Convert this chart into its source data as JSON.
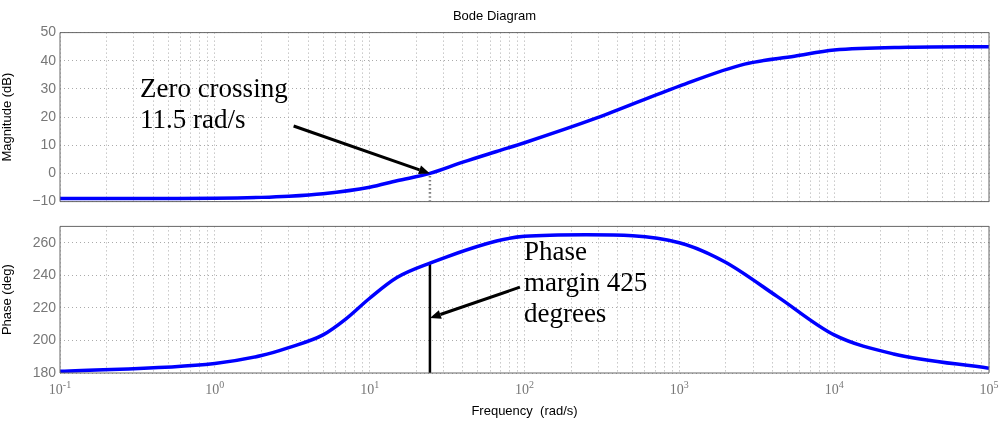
{
  "chart_data": [
    {
      "type": "line",
      "title": "Bode Diagram",
      "ylabel": "Magnitude (dB)",
      "log": "x",
      "grid": true,
      "legend": false,
      "tick_labels": "y",
      "xlim": [
        0.1,
        100000
      ],
      "ylim": [
        -10,
        50
      ],
      "xticks": [
        0.1,
        0.2,
        0.3,
        0.4,
        0.5,
        0.6,
        0.7,
        0.8,
        0.9,
        1,
        2,
        3,
        4,
        5,
        6,
        7,
        8,
        9,
        10,
        20,
        30,
        40,
        50,
        60,
        70,
        80,
        90,
        100,
        200,
        300,
        400,
        500,
        600,
        700,
        800,
        900,
        1000,
        2000,
        3000,
        4000,
        5000,
        6000,
        7000,
        8000,
        9000,
        10000,
        20000,
        30000,
        40000,
        50000,
        60000,
        70000,
        80000,
        90000,
        100000
      ],
      "yticks": [
        {
          "value": -10,
          "label": "−10"
        },
        0,
        10,
        20,
        30,
        40,
        50
      ],
      "annotations": [
        "Zero crossing\n11.5 rad/s"
      ],
      "series": [
        {
          "color": "#0000ff",
          "x": [
            0.1,
            0.3,
            1,
            2,
            3,
            5,
            10,
            15,
            24.5,
            40,
            66,
            100,
            290,
            1000,
            2640,
            5540,
            10000,
            30000,
            100000
          ],
          "values": [
            -8.9,
            -8.9,
            -8.8,
            -8.5,
            -8.1,
            -7.2,
            -4.9,
            -2.6,
            0,
            4,
            7.8,
            10.9,
            19.6,
            31,
            38.8,
            41.6,
            43.8,
            44.8,
            45
          ]
        },
        {
          "color": "#808080",
          "line_style": "dotted",
          "x": [
            24.5,
            24.5
          ],
          "values": [
            -10,
            0
          ]
        }
      ]
    },
    {
      "type": "line",
      "xlabel": "Frequency  (rad/s)",
      "ylabel": "Phase (deg)",
      "log": "x",
      "grid": true,
      "legend": false,
      "xlim": [
        0.1,
        100000
      ],
      "ylim": [
        180,
        270
      ],
      "xticks": [
        {
          "value": 0.1,
          "label": "10$^{-1}$"
        },
        {
          "value": 0.2,
          "label": null
        },
        {
          "value": 0.3,
          "label": null
        },
        {
          "value": 0.4,
          "label": null
        },
        {
          "value": 0.5,
          "label": null
        },
        {
          "value": 0.6,
          "label": null
        },
        {
          "value": 0.7,
          "label": null
        },
        {
          "value": 0.8,
          "label": null
        },
        {
          "value": 0.9,
          "label": null
        },
        {
          "value": 1,
          "label": "10$^{0}$"
        },
        {
          "value": 2,
          "label": null
        },
        {
          "value": 3,
          "label": null
        },
        {
          "value": 4,
          "label": null
        },
        {
          "value": 5,
          "label": null
        },
        {
          "value": 6,
          "label": null
        },
        {
          "value": 7,
          "label": null
        },
        {
          "value": 8,
          "label": null
        },
        {
          "value": 9,
          "label": null
        },
        {
          "value": 10,
          "label": "10$^{1}$"
        },
        {
          "value": 20,
          "label": null
        },
        {
          "value": 30,
          "label": null
        },
        {
          "value": 40,
          "label": null
        },
        {
          "value": 50,
          "label": null
        },
        {
          "value": 60,
          "label": null
        },
        {
          "value": 70,
          "label": null
        },
        {
          "value": 80,
          "label": null
        },
        {
          "value": 90,
          "label": null
        },
        {
          "value": 100,
          "label": "10$^{2}$"
        },
        {
          "value": 200,
          "label": null
        },
        {
          "value": 300,
          "label": null
        },
        {
          "value": 400,
          "label": null
        },
        {
          "value": 500,
          "label": null
        },
        {
          "value": 600,
          "label": null
        },
        {
          "value": 700,
          "label": null
        },
        {
          "value": 800,
          "label": null
        },
        {
          "value": 900,
          "label": null
        },
        {
          "value": 1000,
          "label": "10$^{3}$"
        },
        {
          "value": 2000,
          "label": null
        },
        {
          "value": 3000,
          "label": null
        },
        {
          "value": 4000,
          "label": null
        },
        {
          "value": 5000,
          "label": null
        },
        {
          "value": 6000,
          "label": null
        },
        {
          "value": 7000,
          "label": null
        },
        {
          "value": 8000,
          "label": null
        },
        {
          "value": 9000,
          "label": null
        },
        {
          "value": 10000,
          "label": "10$^{4}$"
        },
        {
          "value": 20000,
          "label": null
        },
        {
          "value": 30000,
          "label": null
        },
        {
          "value": 40000,
          "label": null
        },
        {
          "value": 50000,
          "label": null
        },
        {
          "value": 60000,
          "label": null
        },
        {
          "value": 70000,
          "label": null
        },
        {
          "value": 80000,
          "label": null
        },
        {
          "value": 90000,
          "label": null
        },
        {
          "value": 100000,
          "label": "10$^{5}$"
        }
      ],
      "yticks": [
        180,
        200,
        220,
        240,
        260
      ],
      "annotations": [
        "Phase\nmargin 425\ndegrees"
      ],
      "series": [
        {
          "color": "#0000ff",
          "x": [
            0.1,
            1,
            2,
            3,
            5,
            7,
            10,
            15,
            24.5,
            66,
            100,
            250,
            1000,
            1960,
            4300,
            10000,
            24200,
            100000
          ],
          "values": [
            181,
            185.9,
            190.7,
            195.6,
            203.4,
            213.1,
            225.9,
            238.6,
            247.4,
            261,
            263.9,
            264.9,
            260,
            248.3,
            226.9,
            203.4,
            191.7,
            182.9
          ]
        },
        {
          "color": "#000000",
          "x": [
            24.5,
            24.5
          ],
          "values": [
            180,
            247.4
          ]
        }
      ]
    }
  ]
}
